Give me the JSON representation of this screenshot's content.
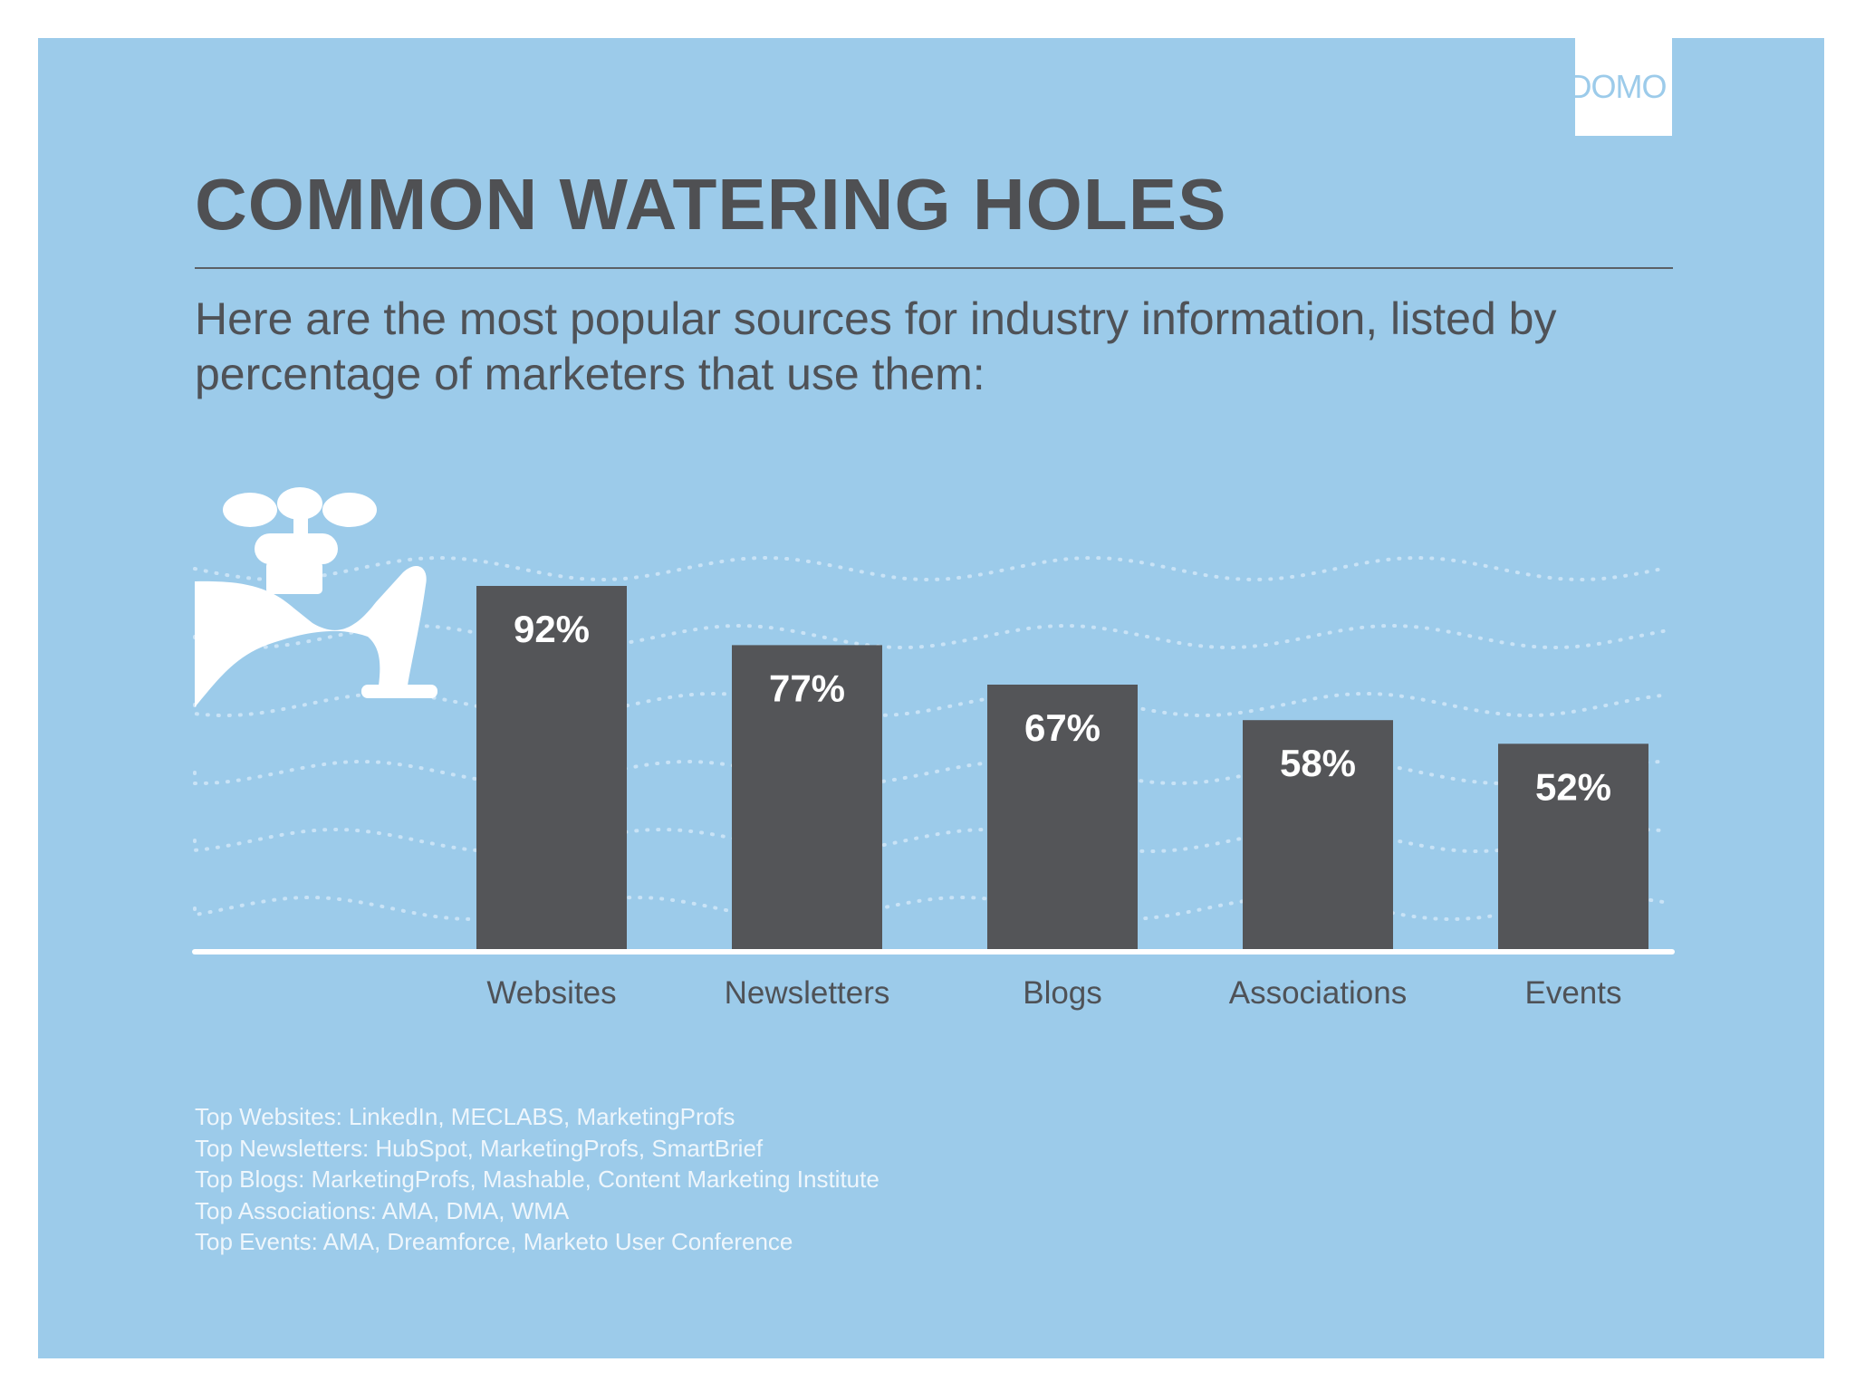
{
  "brand": {
    "logo_text": "DOMO"
  },
  "header": {
    "title": "COMMON WATERING HOLES",
    "subtitle": "Here are the most popular sources for industry information, listed by percentage of marketers that use them:"
  },
  "colors": {
    "background": "#9ccbea",
    "bar": "#545558",
    "title": "#4f5053",
    "wave_dots": "#c9e3f6",
    "baseline": "#ffffff"
  },
  "icons": {
    "faucet": "faucet-icon"
  },
  "chart_data": {
    "type": "bar",
    "title": "",
    "xlabel": "",
    "ylabel": "",
    "categories": [
      "Websites",
      "Newsletters",
      "Blogs",
      "Associations",
      "Events"
    ],
    "values": [
      92,
      77,
      67,
      58,
      52
    ],
    "value_labels": [
      "92%",
      "77%",
      "67%",
      "58%",
      "52%"
    ],
    "unit": "%",
    "ylim": [
      0,
      100
    ],
    "grid": false,
    "legend": "none"
  },
  "notes": [
    "Top Websites: LinkedIn, MECLABS, MarketingProfs",
    "Top Newsletters: HubSpot, MarketingProfs, SmartBrief",
    "Top Blogs: MarketingProfs, Mashable, Content Marketing Institute",
    "Top Associations: AMA, DMA, WMA",
    "Top Events: AMA, Dreamforce, Marketo User Conference"
  ]
}
